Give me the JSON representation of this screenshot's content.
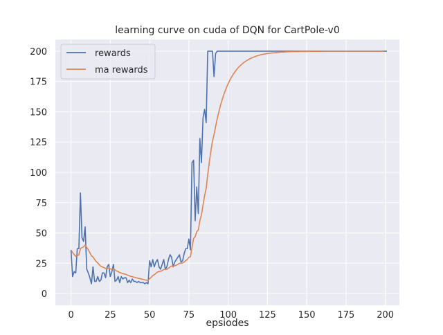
{
  "chart_data": {
    "type": "line",
    "title": "learning curve on cuda of DQN for CartPole-v0",
    "xlabel": "epsiodes",
    "ylabel": "",
    "xlim": [
      -9.95,
      208.95
    ],
    "ylim": [
      -9.7,
      209.7
    ],
    "xticks": [
      0,
      25,
      50,
      75,
      100,
      125,
      150,
      175,
      200
    ],
    "yticks": [
      0,
      25,
      50,
      75,
      100,
      125,
      150,
      175,
      200
    ],
    "grid": true,
    "legend_placement": "upper-left",
    "background_color": "#EAEAF2",
    "series": [
      {
        "name": "rewards",
        "color": "#4C72B0",
        "values": [
          36,
          14,
          18,
          17,
          37,
          37,
          83,
          46,
          43,
          55,
          20,
          17,
          13,
          8,
          22,
          10,
          10,
          14,
          10,
          11,
          17,
          17,
          13,
          22,
          24,
          14,
          18,
          24,
          10,
          11,
          14,
          9,
          14,
          12,
          13,
          13,
          9,
          11,
          9,
          12,
          10,
          10,
          9,
          10,
          9,
          9,
          9,
          8,
          9,
          8,
          27,
          22,
          28,
          22,
          26,
          28,
          22,
          20,
          24,
          28,
          20,
          22,
          28,
          32,
          30,
          22,
          26,
          28,
          30,
          32,
          26,
          27,
          33,
          37,
          37,
          45,
          36,
          108,
          110,
          60,
          88,
          66,
          128,
          108,
          145,
          152,
          141,
          200,
          200,
          200,
          200,
          179,
          198,
          200,
          200,
          200,
          200,
          200,
          200,
          200,
          200,
          200,
          200,
          200,
          200,
          200,
          200,
          200,
          200,
          200,
          200,
          200,
          200,
          200,
          200,
          200,
          200,
          200,
          200,
          200,
          200,
          200,
          200,
          200,
          200,
          200,
          200,
          200,
          200,
          200,
          200,
          200,
          200,
          200,
          200,
          200,
          200,
          200,
          200,
          200,
          200,
          200,
          200,
          200,
          200,
          200,
          200,
          200,
          200,
          200,
          200,
          200,
          200,
          200,
          200,
          200,
          200,
          200,
          200,
          200,
          200,
          200,
          200,
          200,
          200,
          200,
          200,
          200,
          200,
          200,
          200,
          200,
          200,
          200,
          200,
          200,
          200,
          200,
          200,
          200,
          200,
          200,
          200,
          200,
          200,
          200,
          200,
          200,
          200,
          200,
          200,
          200,
          200,
          200,
          200,
          200,
          200,
          200,
          200,
          200,
          200,
          200
        ]
      },
      {
        "name": "ma rewards",
        "color": "#DD8452",
        "values": [
          36,
          33.8,
          32.2,
          30.7,
          31.3,
          31.9,
          37.0,
          37.9,
          38.4,
          40.1,
          38.1,
          36.0,
          33.7,
          31.1,
          30.2,
          28.2,
          26.4,
          25.2,
          23.7,
          22.4,
          21.9,
          21.4,
          20.6,
          20.7,
          21.0,
          20.3,
          20.1,
          20.5,
          19.5,
          18.6,
          18.1,
          17.2,
          16.9,
          16.4,
          16.1,
          15.8,
          15.1,
          14.7,
          14.1,
          13.9,
          13.5,
          13.2,
          12.8,
          12.5,
          12.2,
          11.9,
          11.6,
          11.2,
          11.0,
          10.7,
          12.3,
          13.3,
          14.8,
          15.5,
          16.6,
          17.7,
          18.1,
          18.3,
          18.9,
          19.8,
          19.8,
          20.0,
          20.8,
          21.9,
          22.7,
          22.6,
          22.9,
          23.4,
          24.1,
          24.9,
          25.0,
          25.2,
          26.0,
          27.1,
          28.1,
          29.8,
          30.4,
          38.2,
          45.4,
          46.9,
          51.0,
          52.5,
          60.1,
          64.9,
          72.9,
          80.8,
          86.8,
          98.1,
          108.3,
          117.5,
          125.7,
          131.1,
          137.8,
          144.0,
          149.6,
          154.7,
          159.2,
          163.3,
          166.9,
          170.2,
          173.2,
          175.9,
          178.3,
          180.5,
          182.4,
          184.2,
          185.8,
          187.2,
          188.5,
          189.6,
          190.7,
          191.6,
          192.4,
          193.2,
          193.9,
          194.5,
          195.0,
          195.5,
          196.0,
          196.4,
          196.7,
          197.1,
          197.4,
          197.6,
          197.9,
          198.1,
          198.3,
          198.4,
          198.6,
          198.7,
          198.9,
          199.0,
          199.1,
          199.2,
          199.3,
          199.3,
          199.4,
          199.5,
          199.5,
          199.6,
          199.6,
          199.7,
          199.7,
          199.7,
          199.7,
          199.7,
          199.8,
          199.8,
          199.8,
          199.8,
          199.8,
          199.8,
          199.9,
          199.9,
          199.9,
          199.9,
          199.9,
          199.9,
          199.9,
          199.9,
          199.9,
          200,
          200,
          200,
          200,
          200,
          200,
          200,
          200,
          200,
          200,
          200,
          200,
          200,
          200,
          200,
          200,
          200,
          200,
          200,
          200,
          200,
          200,
          200,
          200,
          200,
          200,
          200,
          200,
          200,
          200,
          200,
          200,
          200,
          200,
          200,
          200,
          200,
          200,
          200
        ]
      }
    ]
  }
}
